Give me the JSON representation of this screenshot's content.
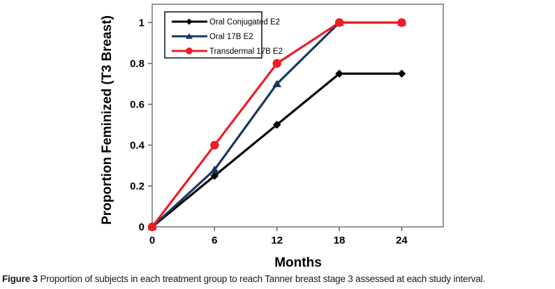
{
  "figure": {
    "caption_label": "Figure 3",
    "caption_text": "Proportion of subjects in each treatment group to reach Tanner breast stage 3 assessed at each study interval."
  },
  "chart_data": {
    "type": "line",
    "x": [
      0,
      6,
      12,
      18,
      24
    ],
    "series": [
      {
        "name": "Oral Conjugated E2",
        "values": [
          0,
          0.25,
          0.5,
          0.75,
          0.75
        ],
        "color": "#000000",
        "marker": "diamond"
      },
      {
        "name": "Oral 17B E2",
        "values": [
          0,
          0.28,
          0.7,
          1,
          1
        ],
        "color": "#17375E",
        "marker": "triangle"
      },
      {
        "name": "Transdermal 17B E2",
        "values": [
          0,
          0.4,
          0.8,
          1,
          1
        ],
        "color": "#EE1C25",
        "marker": "circle"
      }
    ],
    "xlabel": "Months",
    "ylabel": "Proportion Feminized (T3 Breast)",
    "xlim": [
      0,
      28
    ],
    "ylim": [
      0,
      1.09
    ],
    "x_ticks": [
      0,
      6,
      12,
      18,
      24
    ],
    "x_tick_labels": [
      "0",
      "6",
      "12",
      "18",
      "24"
    ],
    "y_ticks": [
      0,
      0.2,
      0.4,
      0.6,
      0.8,
      1
    ],
    "y_tick_labels": [
      "0",
      "0.2",
      "0.4",
      "0.6",
      "0.8",
      "1"
    ],
    "grid": false,
    "legend_position": "top-left-inside",
    "axis_color": "#808080",
    "tick_color": "#595959",
    "plot_border_color": "#7f7f7f"
  }
}
